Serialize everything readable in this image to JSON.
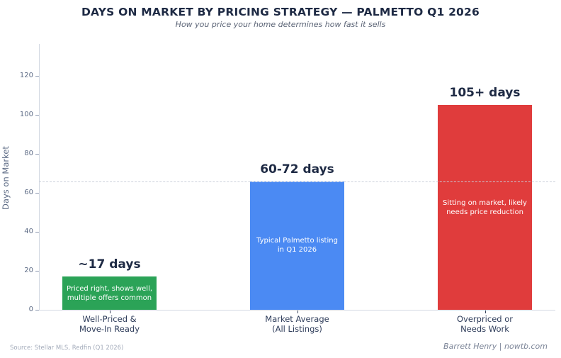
{
  "header": {
    "title": "DAYS ON MARKET BY PRICING STRATEGY — PALMETTO Q1 2026",
    "subtitle": "How you price your home determines how fast it sells"
  },
  "footer": {
    "source": "Source: Stellar MLS, Redfin (Q1 2026)",
    "credit": "Barrett Henry | nowtb.com"
  },
  "chart_data": {
    "type": "bar",
    "title": "DAYS ON MARKET BY PRICING STRATEGY — PALMETTO Q1 2026",
    "subtitle": "How you price your home determines how fast it sells",
    "xlabel": "",
    "ylabel": "Days on Market",
    "ylim": [
      0,
      135
    ],
    "yticks": [
      0,
      20,
      40,
      60,
      80,
      100,
      120
    ],
    "grid": false,
    "legend": "none",
    "categories": [
      [
        "Well-Priced &",
        "Move-In Ready"
      ],
      [
        "Market Average",
        "(All Listings)"
      ],
      [
        "Overpriced or",
        "Needs Work"
      ]
    ],
    "values": [
      17,
      66,
      105
    ],
    "value_labels": [
      "~17 days",
      "60-72 days",
      "105+ days"
    ],
    "bar_annotations": [
      [
        "Priced right, shows well,",
        "multiple offers common"
      ],
      [
        "Typical Palmetto listing",
        "in Q1 2026"
      ],
      [
        "Sitting on market, likely",
        "needs price reduction"
      ]
    ],
    "bar_colors": [
      "#2BA357",
      "#4B8AF3",
      "#E03C3C"
    ],
    "annotation_text_color": "#FFFFFF",
    "value_label_color": "#1E2A44",
    "reference_line": {
      "value": 66,
      "style": "dashed",
      "color": "#C9CEDA"
    }
  }
}
